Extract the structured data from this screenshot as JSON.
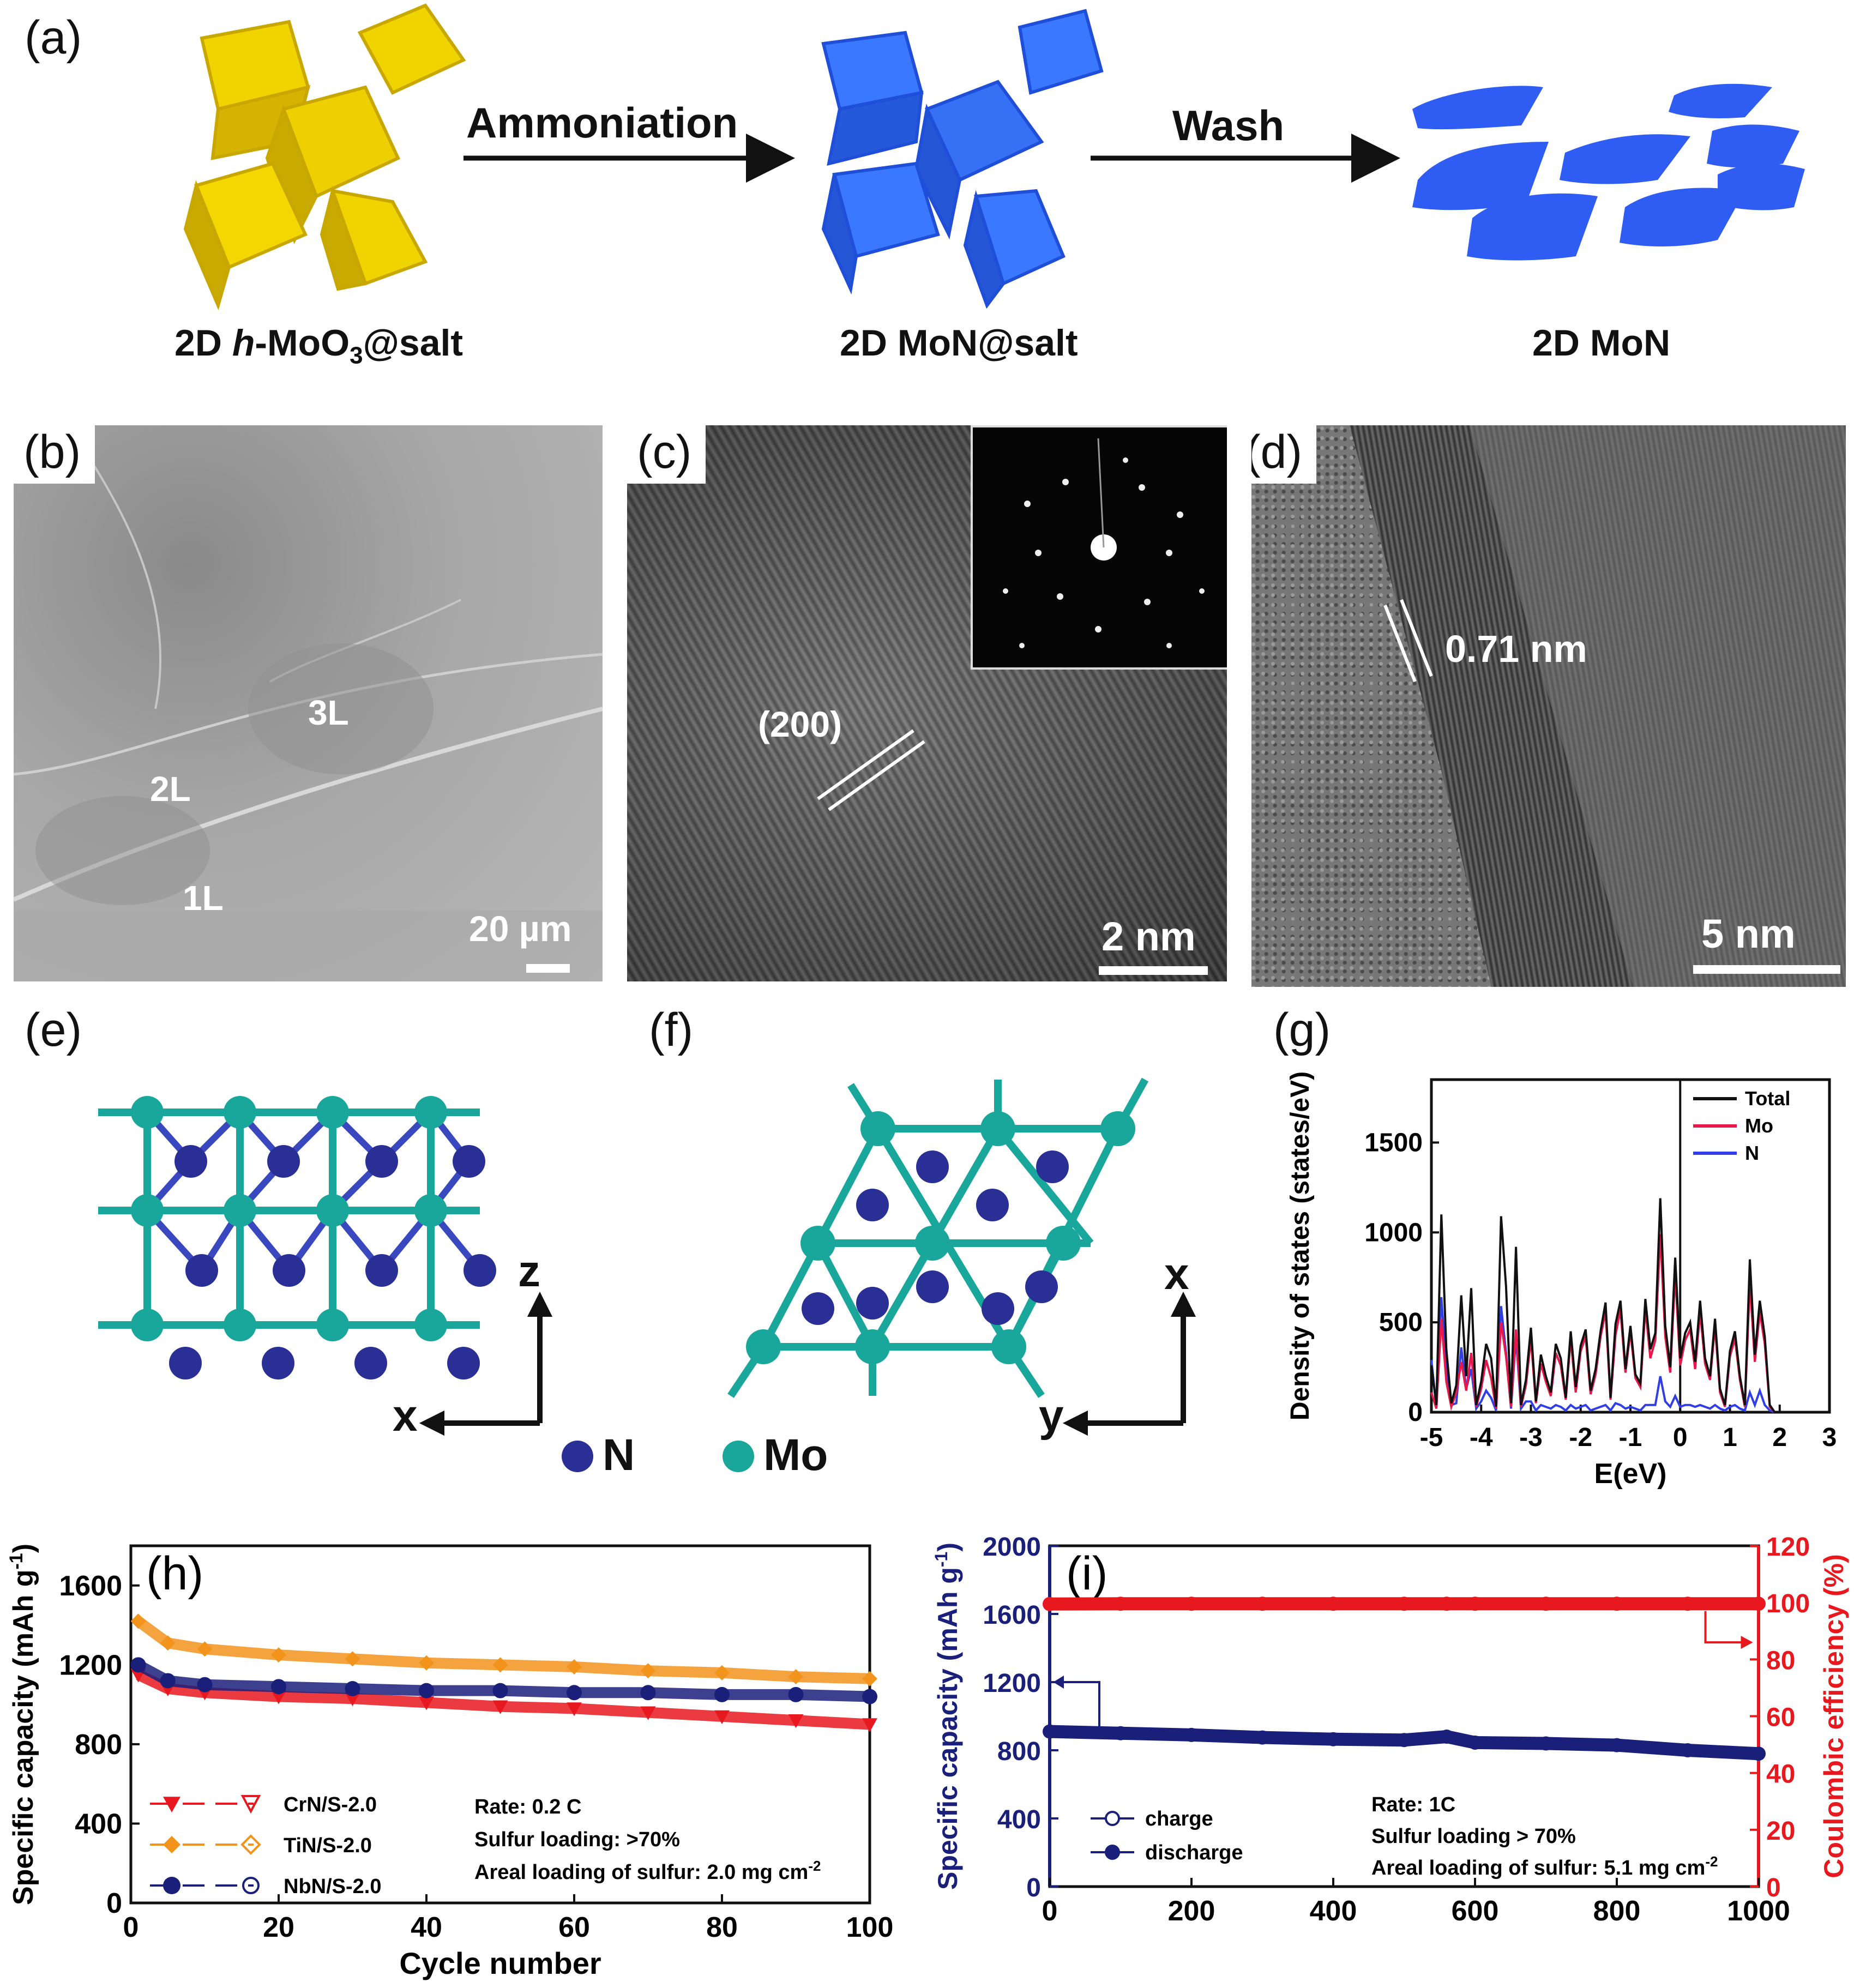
{
  "panel_a": {
    "label": "(a)",
    "arrow1_label": "Ammoniation",
    "arrow2_label": "Wash",
    "caption1_pre": "2D ",
    "caption1_italic": "h",
    "caption1_mid": "-MoO",
    "caption1_sub": "3",
    "caption1_post": "@salt",
    "caption2": "2D MoN@salt",
    "caption3": "2D MoN",
    "colors": {
      "yellow": "#e8c800",
      "blue": "#2f6bf0"
    }
  },
  "panel_b": {
    "label": "(b)",
    "layer_labels": [
      "3L",
      "2L",
      "1L"
    ],
    "scale": "20 µm"
  },
  "panel_c": {
    "label": "(c)",
    "plane": "(200)",
    "scale": "2 nm"
  },
  "panel_d": {
    "label": "(d)",
    "spacing": "0.71 nm",
    "scale": "5 nm"
  },
  "panel_e": {
    "label": "(e)",
    "axis_vertical": "z",
    "axis_horizontal": "x"
  },
  "panel_f": {
    "label": "(f)",
    "axis_vertical": "x",
    "axis_horizontal": "y"
  },
  "legend_atoms": {
    "n": "N",
    "mo": "Mo",
    "n_color": "#2a2f96",
    "mo_color": "#1aa79b"
  },
  "chart_data": [
    {
      "id": "g",
      "label": "(g)",
      "type": "line",
      "xlabel": "E(eV)",
      "ylabel": "Density of states (states/eV)",
      "xlim": [
        -5,
        3
      ],
      "ylim": [
        0,
        1850
      ],
      "xticks": [
        -5,
        -4,
        -3,
        -2,
        -1,
        0,
        1,
        2,
        3
      ],
      "yticks": [
        0,
        500,
        1000,
        1500
      ],
      "legend": [
        "Total",
        "Mo",
        "N"
      ],
      "legend_position": "top-right",
      "fermi_level": 0,
      "colors": {
        "Total": "#111111",
        "Mo": "#e8184a",
        "N": "#2f3ee6"
      },
      "x": [
        -5.0,
        -4.9,
        -4.8,
        -4.7,
        -4.6,
        -4.5,
        -4.4,
        -4.3,
        -4.2,
        -4.1,
        -4.0,
        -3.9,
        -3.8,
        -3.7,
        -3.6,
        -3.5,
        -3.4,
        -3.3,
        -3.2,
        -3.1,
        -3.0,
        -2.9,
        -2.8,
        -2.7,
        -2.6,
        -2.5,
        -2.4,
        -2.3,
        -2.2,
        -2.1,
        -2.0,
        -1.9,
        -1.8,
        -1.7,
        -1.6,
        -1.5,
        -1.4,
        -1.3,
        -1.2,
        -1.1,
        -1.0,
        -0.9,
        -0.8,
        -0.7,
        -0.6,
        -0.5,
        -0.4,
        -0.3,
        -0.2,
        -0.1,
        0.0,
        0.1,
        0.2,
        0.3,
        0.4,
        0.5,
        0.6,
        0.7,
        0.8,
        0.9,
        1.0,
        1.1,
        1.2,
        1.3,
        1.4,
        1.5,
        1.6,
        1.7,
        1.8,
        1.9,
        2.0,
        2.1,
        2.5,
        3.0
      ],
      "series": [
        {
          "name": "Total",
          "values": [
            260,
            40,
            1100,
            350,
            50,
            150,
            650,
            200,
            690,
            40,
            170,
            380,
            300,
            30,
            1090,
            700,
            50,
            920,
            40,
            180,
            470,
            60,
            320,
            200,
            110,
            380,
            300,
            80,
            450,
            140,
            370,
            460,
            120,
            240,
            450,
            610,
            80,
            490,
            620,
            240,
            480,
            210,
            160,
            630,
            350,
            440,
            1190,
            480,
            250,
            860,
            300,
            440,
            500,
            280,
            620,
            300,
            200,
            520,
            130,
            40,
            340,
            450,
            200,
            40,
            850,
            320,
            620,
            420,
            40,
            0,
            0,
            0,
            0,
            0
          ]
        },
        {
          "name": "Mo",
          "values": [
            110,
            20,
            520,
            170,
            30,
            110,
            280,
            120,
            330,
            30,
            130,
            290,
            190,
            20,
            500,
            310,
            30,
            460,
            30,
            150,
            410,
            50,
            270,
            170,
            90,
            330,
            260,
            70,
            410,
            110,
            340,
            420,
            100,
            210,
            420,
            560,
            70,
            430,
            570,
            220,
            450,
            190,
            140,
            580,
            300,
            400,
            990,
            420,
            220,
            770,
            260,
            400,
            460,
            240,
            560,
            270,
            180,
            480,
            110,
            30,
            310,
            410,
            180,
            30,
            730,
            280,
            560,
            380,
            30,
            0,
            0,
            0,
            0,
            0
          ]
        },
        {
          "name": "N",
          "values": [
            290,
            30,
            640,
            240,
            40,
            50,
            360,
            130,
            240,
            20,
            60,
            120,
            80,
            10,
            590,
            330,
            20,
            420,
            20,
            60,
            60,
            10,
            40,
            30,
            20,
            40,
            30,
            10,
            40,
            20,
            30,
            40,
            10,
            20,
            30,
            40,
            10,
            50,
            40,
            20,
            30,
            20,
            10,
            40,
            40,
            40,
            200,
            60,
            30,
            90,
            30,
            40,
            40,
            30,
            40,
            30,
            20,
            40,
            20,
            10,
            30,
            40,
            20,
            10,
            110,
            40,
            120,
            40,
            10,
            0,
            0,
            0,
            0,
            0
          ]
        }
      ]
    },
    {
      "id": "h",
      "label": "(h)",
      "type": "scatter",
      "xlabel": "Cycle number",
      "ylabel": "Specific capacity (mAh g",
      "ylabel_sup": "-1",
      "ylabel_end": ")",
      "xlim": [
        0,
        100
      ],
      "ylim": [
        0,
        1800
      ],
      "xticks": [
        0,
        20,
        40,
        60,
        80,
        100
      ],
      "yticks": [
        0,
        400,
        800,
        1200,
        1600
      ],
      "legend": [
        "CrN/S-2.0",
        "TiN/S-2.0",
        "NbN/S-2.0"
      ],
      "legend_position": "bottom-left",
      "annotations": [
        "Rate: 0.2 C",
        "Sulfur loading: >70%",
        "Areal loading of sulfur: 2.0 mg cm"
      ],
      "annotation_sup": "-2",
      "x": [
        1,
        5,
        10,
        20,
        30,
        40,
        50,
        60,
        70,
        80,
        90,
        100
      ],
      "series": [
        {
          "name": "CrN/S-2.0",
          "color": "#e8191e",
          "marker": "triangle-down",
          "values": [
            1150,
            1080,
            1060,
            1040,
            1030,
            1010,
            990,
            980,
            960,
            940,
            920,
            900
          ]
        },
        {
          "name": "TiN/S-2.0",
          "color": "#f2931c",
          "marker": "diamond",
          "values": [
            1420,
            1310,
            1280,
            1250,
            1230,
            1210,
            1200,
            1190,
            1170,
            1160,
            1140,
            1130
          ]
        },
        {
          "name": "NbN/S-2.0",
          "color": "#1a1f7a",
          "marker": "circle",
          "values": [
            1200,
            1120,
            1100,
            1090,
            1080,
            1070,
            1070,
            1060,
            1060,
            1050,
            1050,
            1040
          ]
        }
      ]
    },
    {
      "id": "i",
      "label": "(i)",
      "type": "scatter",
      "xlabel": "",
      "ylabel": "Specific capacity (mAh g",
      "ylabel_sup": "-1",
      "ylabel_end": ")",
      "y2label": "Coulombic efficiency (%)",
      "xlim": [
        0,
        1000
      ],
      "ylim": [
        0,
        2000
      ],
      "y2lim": [
        0,
        120
      ],
      "xticks": [
        0,
        200,
        400,
        600,
        800,
        1000
      ],
      "yticks": [
        0,
        400,
        800,
        1200,
        1600,
        2000
      ],
      "y2ticks": [
        0,
        20,
        40,
        60,
        80,
        100,
        120
      ],
      "legend": [
        "charge",
        "discharge"
      ],
      "legend_position": "bottom-left",
      "annotations": [
        "Rate: 1C",
        "Sulfur loading > 70%",
        "Areal loading of sulfur: 5.1 mg cm"
      ],
      "annotation_sup": "-2",
      "x": [
        0,
        100,
        200,
        300,
        400,
        500,
        560,
        600,
        700,
        800,
        900,
        1000
      ],
      "series": [
        {
          "name": "discharge",
          "axis": "left",
          "color": "#1a1f7a",
          "values": [
            910,
            900,
            890,
            875,
            865,
            860,
            880,
            845,
            840,
            830,
            800,
            780
          ]
        },
        {
          "name": "Coulombic efficiency",
          "axis": "right",
          "color": "#e8191e",
          "values": [
            99.5,
            99.6,
            99.6,
            99.6,
            99.6,
            99.6,
            99.6,
            99.6,
            99.6,
            99.6,
            99.6,
            99.6
          ]
        }
      ]
    }
  ]
}
